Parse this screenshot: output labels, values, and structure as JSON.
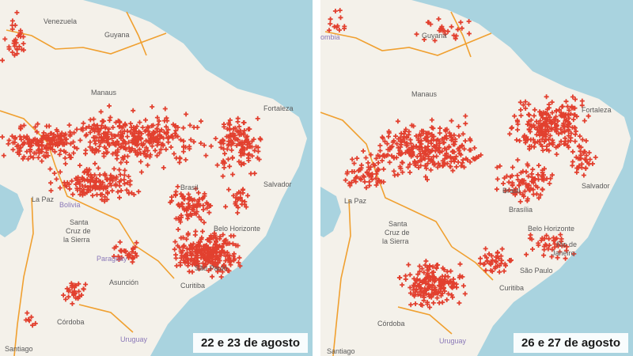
{
  "colors": {
    "ocean": "#a9d3df",
    "land": "#f4f1ea",
    "border": "#f0a030",
    "fire": "#e2402f",
    "label": "#5a5a5a",
    "country_label": "#8a78b8"
  },
  "icons": {
    "fire_marker": "red-cross-icon"
  },
  "panels": [
    {
      "id": "left",
      "caption": "22 e 23 de agosto",
      "places": {
        "venezuela": "Venezuela",
        "guyana": "Guyana",
        "manaus": "Manaus",
        "fortaleza": "Fortaleza",
        "salvador": "Salvador",
        "brasil": "Brasil",
        "la_paz": "La Paz",
        "bolivia": "Bolivia",
        "santa_cruz_1": "Santa",
        "santa_cruz_2": "Cruz de",
        "santa_cruz_3": "la Sierra",
        "paraguay": "Paraguay",
        "asuncion": "Asunción",
        "belo_horizonte": "Belo Horizonte",
        "sao_paulo": "São Paulo",
        "curitiba": "Curitiba",
        "cordoba": "Córdoba",
        "uruguay": "Uruguay",
        "santiago": "Santiago"
      }
    },
    {
      "id": "right",
      "caption": "26 e 27 de agosto",
      "places": {
        "colombia": "ombia",
        "guyana": "Guyana",
        "manaus": "Manaus",
        "fortaleza": "Fortaleza",
        "salvador": "Salvador",
        "brasil": "Brasil",
        "brasilia": "Brasília",
        "la_paz": "La Paz",
        "santa_cruz_1": "Santa",
        "santa_cruz_2": "Cruz de",
        "santa_cruz_3": "la Sierra",
        "belo_horizonte": "Belo Horizonte",
        "rio_1": "Rio de",
        "rio_2": "Janeiro",
        "sao_paulo": "São Paulo",
        "curitiba": "Curitiba",
        "cordoba": "Córdoba",
        "uruguay": "Uruguay",
        "santiago": "Santiago"
      }
    }
  ]
}
